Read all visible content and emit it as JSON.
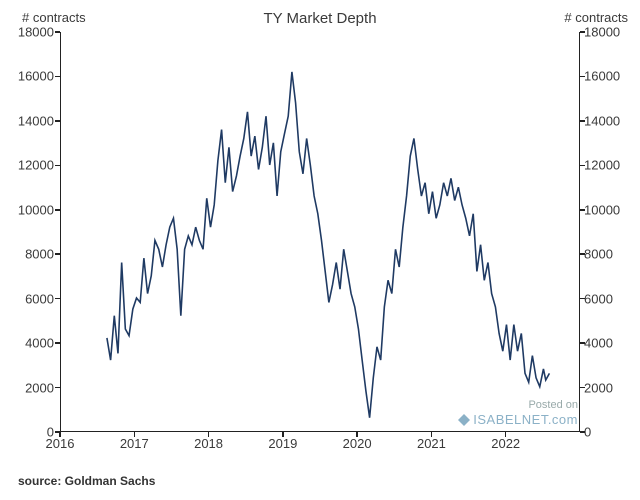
{
  "chart": {
    "type": "line",
    "title": "TY Market Depth",
    "y_left_label": "# contracts",
    "y_right_label": "# contracts",
    "xlim": [
      2016,
      2023
    ],
    "ylim": [
      0,
      18000
    ],
    "x_ticks": [
      2016,
      2017,
      2018,
      2019,
      2020,
      2021,
      2022
    ],
    "y_ticks": [
      0,
      2000,
      4000,
      6000,
      8000,
      10000,
      12000,
      14000,
      16000,
      18000
    ],
    "line_color": "#1f3a63",
    "line_width": 1.6,
    "background_color": "#ffffff",
    "axis_color": "#222222",
    "tick_fontsize": 13,
    "title_fontsize": 15,
    "tick_length": 5,
    "series": {
      "x": [
        2016.62,
        2016.67,
        2016.72,
        2016.77,
        2016.82,
        2016.87,
        2016.92,
        2016.97,
        2017.02,
        2017.07,
        2017.12,
        2017.17,
        2017.22,
        2017.27,
        2017.32,
        2017.37,
        2017.42,
        2017.47,
        2017.52,
        2017.57,
        2017.62,
        2017.67,
        2017.72,
        2017.77,
        2017.82,
        2017.87,
        2017.92,
        2017.97,
        2018.02,
        2018.07,
        2018.12,
        2018.17,
        2018.22,
        2018.27,
        2018.32,
        2018.37,
        2018.42,
        2018.47,
        2018.52,
        2018.57,
        2018.62,
        2018.67,
        2018.72,
        2018.77,
        2018.82,
        2018.87,
        2018.92,
        2018.97,
        2019.02,
        2019.07,
        2019.12,
        2019.17,
        2019.22,
        2019.27,
        2019.32,
        2019.37,
        2019.42,
        2019.47,
        2019.52,
        2019.57,
        2019.62,
        2019.67,
        2019.72,
        2019.77,
        2019.82,
        2019.87,
        2019.92,
        2019.97,
        2020.02,
        2020.07,
        2020.12,
        2020.17,
        2020.22,
        2020.27,
        2020.32,
        2020.37,
        2020.42,
        2020.47,
        2020.52,
        2020.57,
        2020.62,
        2020.67,
        2020.72,
        2020.77,
        2020.82,
        2020.87,
        2020.92,
        2020.97,
        2021.02,
        2021.07,
        2021.12,
        2021.17,
        2021.22,
        2021.27,
        2021.32,
        2021.37,
        2021.42,
        2021.47,
        2021.52,
        2021.57,
        2021.62,
        2021.67,
        2021.72,
        2021.77,
        2021.82,
        2021.87,
        2021.92,
        2021.97,
        2022.02,
        2022.07,
        2022.12,
        2022.17,
        2022.22,
        2022.27,
        2022.32,
        2022.37,
        2022.42,
        2022.47,
        2022.52,
        2022.55,
        2022.6
      ],
      "y": [
        4200,
        3200,
        5200,
        3500,
        7600,
        4600,
        4300,
        5500,
        6000,
        5800,
        7800,
        6200,
        7000,
        8600,
        8200,
        7400,
        8400,
        9200,
        9600,
        8200,
        5200,
        8200,
        8800,
        8400,
        9200,
        8600,
        8200,
        10500,
        9200,
        10200,
        12200,
        13600,
        11200,
        12800,
        10800,
        11500,
        12400,
        13200,
        14400,
        12400,
        13300,
        11800,
        12800,
        14200,
        12000,
        13000,
        10600,
        12600,
        13400,
        14200,
        16200,
        14800,
        12600,
        11600,
        13200,
        12000,
        10600,
        9800,
        8600,
        7200,
        5800,
        6600,
        7600,
        6400,
        8200,
        7200,
        6200,
        5600,
        4600,
        3200,
        1800,
        600,
        2400,
        3800,
        3200,
        5600,
        6800,
        6200,
        8200,
        7400,
        9200,
        10600,
        12400,
        13200,
        11800,
        10600,
        11200,
        9800,
        10800,
        9600,
        10200,
        11200,
        10600,
        11400,
        10400,
        11000,
        10200,
        9600,
        8800,
        9800,
        7200,
        8400,
        6800,
        7600,
        6200,
        5600,
        4400,
        3600,
        4800,
        3200,
        4800,
        3600,
        4400,
        2600,
        2200,
        3400,
        2400,
        2000,
        2800,
        2300,
        2600
      ]
    }
  },
  "watermark": {
    "posted": "Posted on",
    "site": "ISABELNET.com"
  },
  "source": "source: Goldman Sachs"
}
